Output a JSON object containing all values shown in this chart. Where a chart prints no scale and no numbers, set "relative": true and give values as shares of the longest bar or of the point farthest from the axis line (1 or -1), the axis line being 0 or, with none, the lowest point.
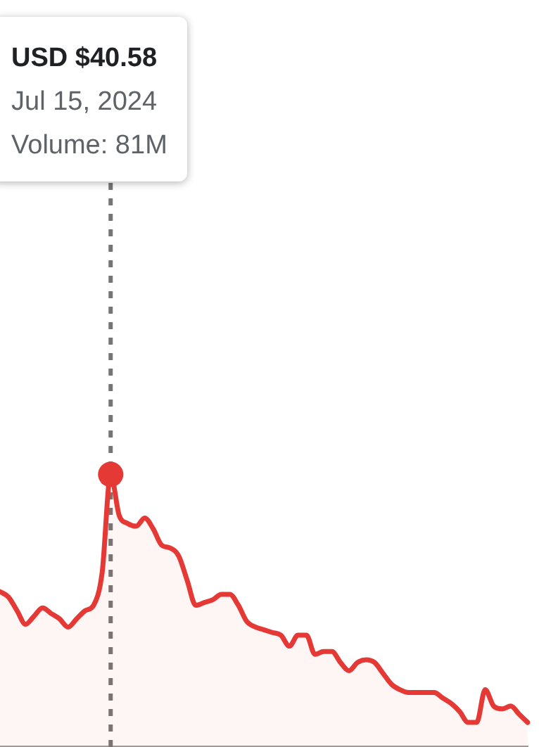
{
  "chart_data": {
    "type": "area",
    "relative": true,
    "legend": false,
    "marker": "none",
    "line_style": "solid",
    "categories": [
      null,
      null,
      null,
      null,
      null,
      null,
      null,
      null,
      null,
      null,
      null,
      null,
      null,
      null,
      null,
      null,
      null,
      null,
      null,
      null,
      null,
      null,
      null,
      null,
      null,
      null,
      null,
      null,
      null,
      null,
      null,
      null,
      null,
      null,
      null,
      null,
      null,
      null,
      null,
      null,
      null,
      null,
      null,
      null,
      null,
      null,
      null,
      null,
      null,
      null,
      null,
      null,
      null,
      null,
      null,
      null,
      null,
      null,
      null,
      null,
      null,
      null,
      null
    ],
    "series": [
      {
        "color": "#e53935",
        "values": [
          0.57,
          0.55,
          0.5,
          0.45,
          0.48,
          0.51,
          0.49,
          0.47,
          0.44,
          0.47,
          0.5,
          0.52,
          0.64,
          1,
          0.85,
          0.82,
          0.81,
          0.84,
          0.8,
          0.74,
          0.73,
          0.7,
          0.61,
          0.52,
          0.53,
          0.54,
          0.56,
          0.56,
          0.52,
          0.46,
          0.44,
          0.43,
          0.42,
          0.41,
          0.37,
          0.41,
          0.41,
          0.34,
          0.35,
          0.35,
          0.31,
          0.28,
          0.31,
          0.32,
          0.31,
          0.27,
          0.23,
          0.21,
          0.2,
          0.2,
          0.2,
          0.2,
          0.18,
          0.16,
          0.13,
          0.09,
          0.09,
          0.21,
          0.15,
          0.14,
          0.15,
          0.12,
          0.09
        ]
      }
    ],
    "annotations": [
      "USD $40.58",
      "Jul 15, 2024",
      "Volume: 81M"
    ]
  }
}
